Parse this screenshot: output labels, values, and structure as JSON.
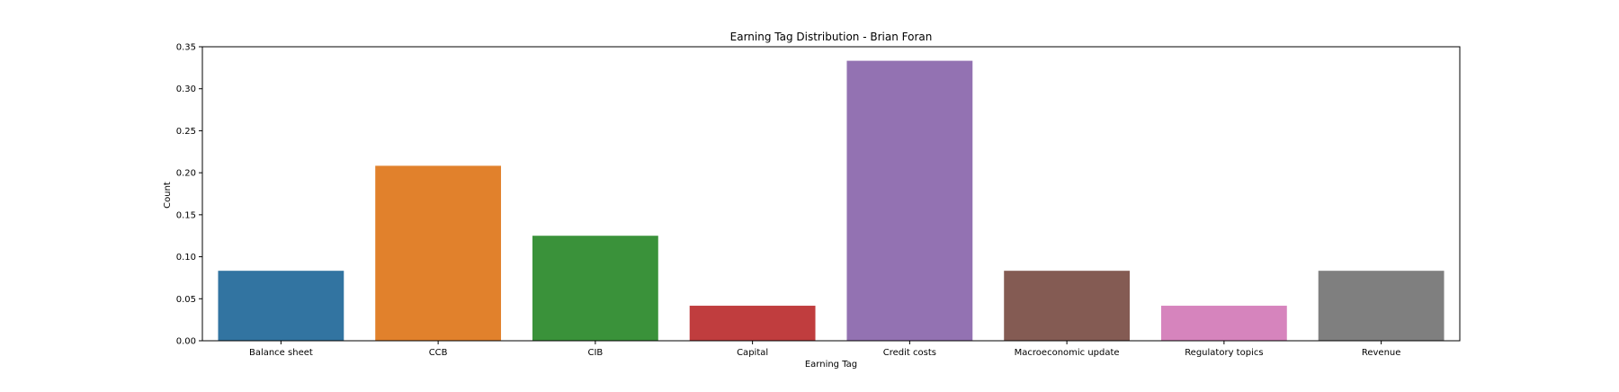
{
  "chart_data": {
    "type": "bar",
    "title": "Earning Tag Distribution - Brian Foran",
    "xlabel": "Earning Tag",
    "ylabel": "Count",
    "categories": [
      "Balance sheet",
      "CCB",
      "CIB",
      "Capital",
      "Credit costs",
      "Macroeconomic update",
      "Regulatory topics",
      "Revenue"
    ],
    "values": [
      0.0833,
      0.2083,
      0.125,
      0.0417,
      0.3333,
      0.0833,
      0.0417,
      0.0833
    ],
    "colors": [
      "#3274a1",
      "#e1812c",
      "#3a923a",
      "#c03d3e",
      "#9372b2",
      "#845b53",
      "#d684bd",
      "#7f7f7f"
    ],
    "ylim": [
      0,
      0.35
    ],
    "yticks": [
      "0.00",
      "0.05",
      "0.10",
      "0.15",
      "0.20",
      "0.25",
      "0.30",
      "0.35"
    ],
    "grid": false,
    "legend": "none"
  }
}
